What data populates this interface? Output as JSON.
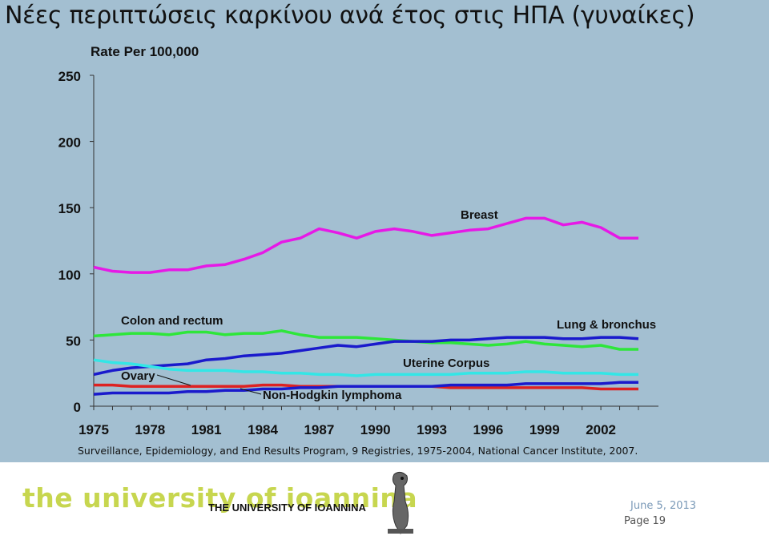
{
  "slide": {
    "title": "Νέες περιπτώσεις καρκίνου ανά έτος στις ΗΠΑ (γυναίκες)",
    "source": "Surveillance, Epidemiology, and End Results Program, 9 Registries, 1975-2004, National Cancer Institute, 2007.",
    "background_color": "#a3bfd1"
  },
  "footer": {
    "logo_large": "the university of ioannina",
    "logo_small": "THE UNIVERSITY OF IOANNINA",
    "date": "June 5, 2013",
    "page_label": "Page",
    "page_number": "19"
  },
  "chart_data": {
    "type": "line",
    "ylabel": "Rate Per 100,000",
    "ylim": [
      0,
      250
    ],
    "yticks": [
      "0",
      "50",
      "100",
      "150",
      "200",
      "250"
    ],
    "xlim": [
      1975,
      2004
    ],
    "xticks": [
      "1975",
      "1978",
      "1981",
      "1984",
      "1987",
      "1990",
      "1993",
      "1996",
      "1999",
      "2002"
    ],
    "grid": false,
    "x": [
      1975,
      1976,
      1977,
      1978,
      1979,
      1980,
      1981,
      1982,
      1983,
      1984,
      1985,
      1986,
      1987,
      1988,
      1989,
      1990,
      1991,
      1992,
      1993,
      1994,
      1995,
      1996,
      1997,
      1998,
      1999,
      2000,
      2001,
      2002,
      2003,
      2004
    ],
    "series": [
      {
        "name": "Breast",
        "color": "#e619e6",
        "values": [
          105,
          102,
          101,
          101,
          103,
          103,
          106,
          107,
          111,
          116,
          124,
          127,
          134,
          131,
          127,
          132,
          134,
          132,
          129,
          131,
          133,
          134,
          138,
          142,
          142,
          137,
          139,
          135,
          127,
          127
        ]
      },
      {
        "name": "Colon and rectum",
        "color": "#2ee63a",
        "values": [
          53,
          54,
          55,
          55,
          54,
          56,
          56,
          54,
          55,
          55,
          57,
          54,
          52,
          52,
          52,
          51,
          50,
          49,
          48,
          48,
          47,
          46,
          47,
          49,
          47,
          46,
          45,
          46,
          43,
          43
        ]
      },
      {
        "name": "Lung & bronchus",
        "color": "#1a1acc",
        "values": [
          24,
          27,
          29,
          30,
          31,
          32,
          35,
          36,
          38,
          39,
          40,
          42,
          44,
          46,
          45,
          47,
          49,
          49,
          49,
          50,
          50,
          51,
          52,
          52,
          52,
          51,
          51,
          52,
          52,
          51
        ]
      },
      {
        "name": "Uterine Corpus",
        "color": "#33e6e6",
        "values": [
          35,
          33,
          32,
          30,
          28,
          27,
          27,
          27,
          26,
          26,
          25,
          25,
          24,
          24,
          23,
          24,
          24,
          24,
          24,
          24,
          25,
          25,
          25,
          26,
          26,
          25,
          25,
          25,
          24,
          24
        ]
      },
      {
        "name": "Ovary",
        "color": "#dd2222",
        "values": [
          16,
          16,
          15,
          15,
          15,
          15,
          15,
          15,
          15,
          16,
          16,
          15,
          15,
          15,
          15,
          15,
          15,
          15,
          15,
          14,
          14,
          14,
          14,
          14,
          14,
          14,
          14,
          13,
          13,
          13
        ]
      },
      {
        "name": "Non-Hodgkin lymphoma",
        "color": "#1a1acc",
        "values": [
          9,
          10,
          10,
          10,
          10,
          11,
          11,
          12,
          12,
          13,
          13,
          14,
          14,
          15,
          15,
          15,
          15,
          15,
          15,
          16,
          16,
          16,
          16,
          17,
          17,
          17,
          17,
          17,
          18,
          18
        ]
      }
    ],
    "annotations": [
      "Breast",
      "Colon and rectum",
      "Lung & bronchus",
      "Uterine Corpus",
      "Ovary",
      "Non-Hodgkin lymphoma"
    ]
  }
}
